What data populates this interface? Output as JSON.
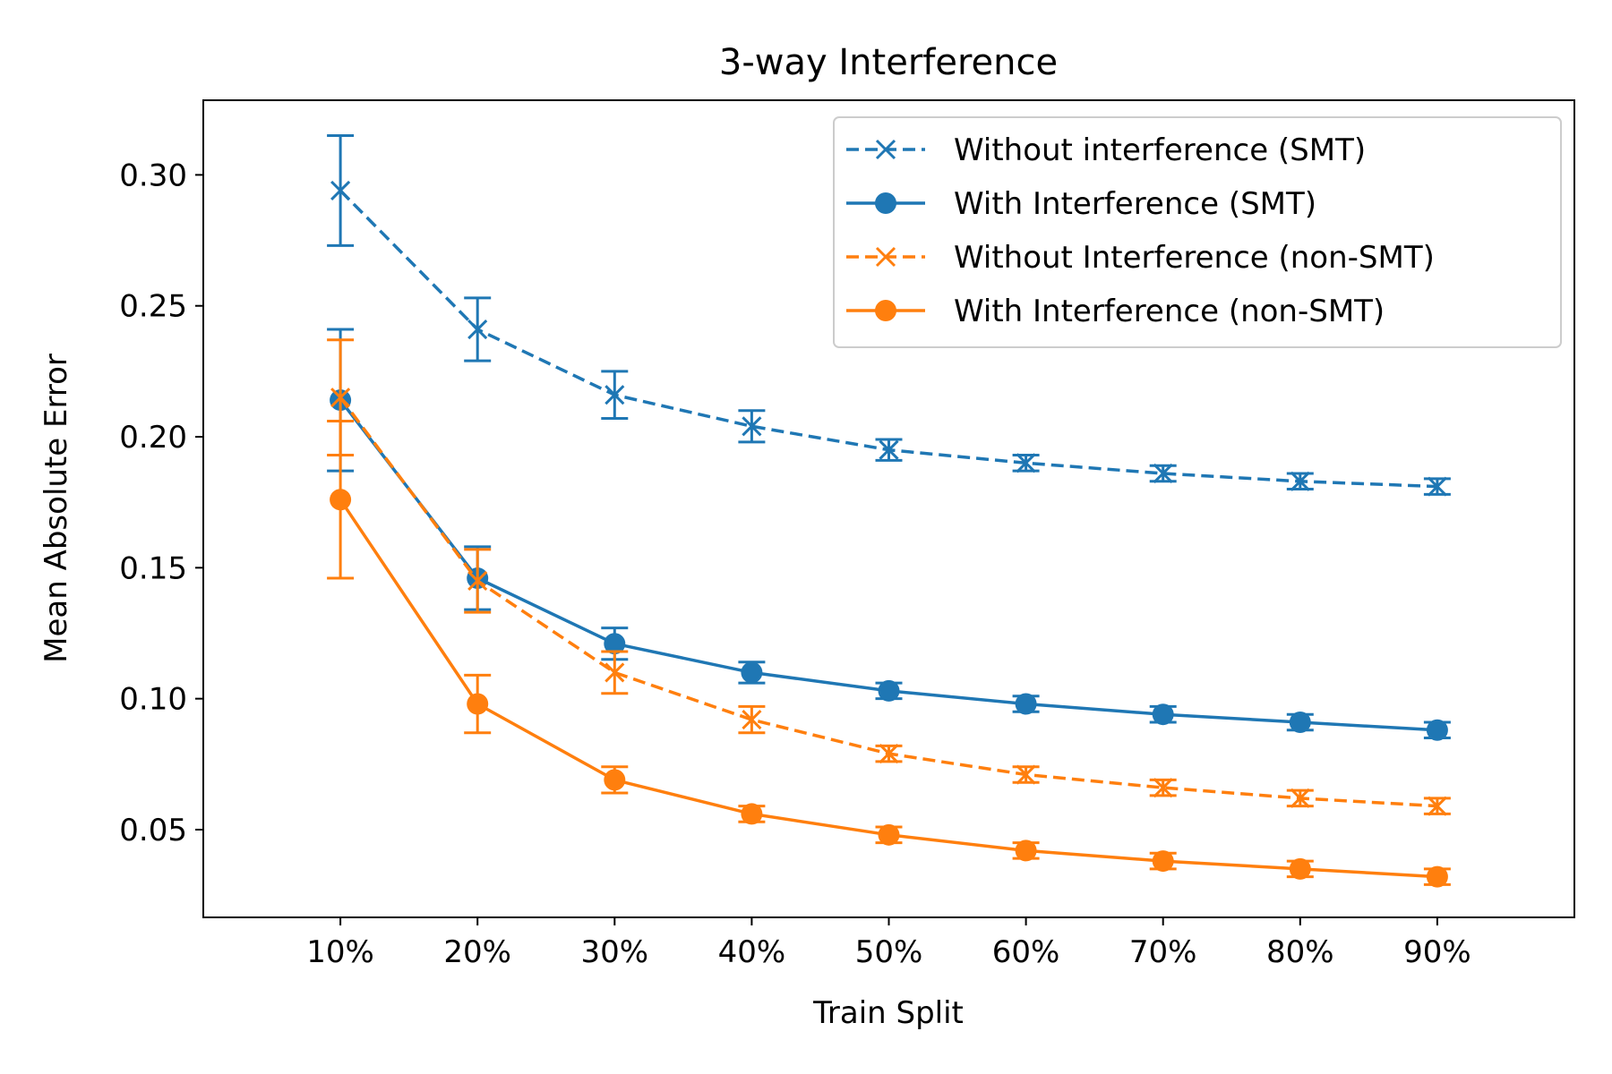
{
  "chart_data": {
    "type": "line",
    "title": "3-way Interference",
    "xlabel": "Train Split",
    "ylabel": "Mean Absolute Error",
    "categories": [
      "10%",
      "20%",
      "30%",
      "40%",
      "50%",
      "60%",
      "70%",
      "80%",
      "90%"
    ],
    "x_range": [
      0.0,
      10.0
    ],
    "y_range": [
      0.0165,
      0.3285
    ],
    "y_ticks": [
      0.05,
      0.1,
      0.15,
      0.2,
      0.25,
      0.3
    ],
    "y_tick_labels": [
      "0.05",
      "0.10",
      "0.15",
      "0.20",
      "0.25",
      "0.30"
    ],
    "grid": false,
    "legend_position": "top-right",
    "series": [
      {
        "name": "Without interference (SMT)",
        "color": "#1f77b4",
        "linestyle": "dashed",
        "marker": "x",
        "values": [
          0.294,
          0.241,
          0.216,
          0.204,
          0.195,
          0.19,
          0.186,
          0.183,
          0.181
        ],
        "errors": [
          0.021,
          0.012,
          0.009,
          0.006,
          0.004,
          0.003,
          0.003,
          0.003,
          0.003
        ]
      },
      {
        "name": "With Interference (SMT)",
        "color": "#1f77b4",
        "linestyle": "solid",
        "marker": "o",
        "values": [
          0.214,
          0.146,
          0.121,
          0.11,
          0.103,
          0.098,
          0.094,
          0.091,
          0.088
        ],
        "errors": [
          0.027,
          0.012,
          0.006,
          0.004,
          0.003,
          0.003,
          0.003,
          0.003,
          0.003
        ]
      },
      {
        "name": "Without Interference (non-SMT)",
        "color": "#ff7f0e",
        "linestyle": "dashed",
        "marker": "x",
        "values": [
          0.215,
          0.145,
          0.11,
          0.092,
          0.079,
          0.071,
          0.066,
          0.062,
          0.059
        ],
        "errors": [
          0.022,
          0.012,
          0.008,
          0.005,
          0.003,
          0.003,
          0.003,
          0.003,
          0.003
        ]
      },
      {
        "name": "With Interference (non-SMT)",
        "color": "#ff7f0e",
        "linestyle": "solid",
        "marker": "o",
        "values": [
          0.176,
          0.098,
          0.069,
          0.056,
          0.048,
          0.042,
          0.038,
          0.035,
          0.032
        ],
        "errors": [
          0.03,
          0.011,
          0.005,
          0.003,
          0.003,
          0.003,
          0.003,
          0.003,
          0.003
        ]
      }
    ]
  }
}
